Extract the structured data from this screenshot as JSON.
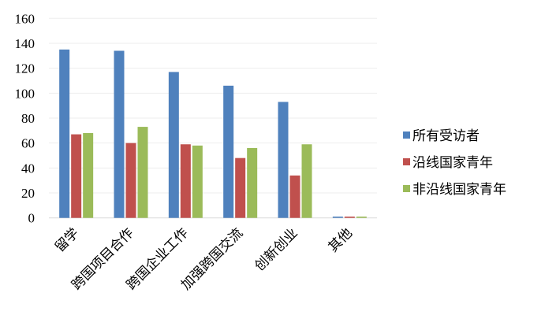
{
  "chart_data": {
    "type": "bar",
    "categories": [
      "留学",
      "跨国项目合作",
      "跨国企业工作",
      "加强跨国交流",
      "创新创业",
      "其他"
    ],
    "series": [
      {
        "name": "所有受访者",
        "color": "#4f81bd",
        "values": [
          135,
          134,
          117,
          106,
          93,
          1
        ]
      },
      {
        "name": "沿线国家青年",
        "color": "#c0504d",
        "values": [
          67,
          60,
          59,
          48,
          34,
          1
        ]
      },
      {
        "name": "非沿线国家青年",
        "color": "#9bbb59",
        "values": [
          68,
          73,
          58,
          56,
          59,
          1
        ]
      }
    ],
    "yticks": [
      "0",
      "20",
      "40",
      "60",
      "80",
      "100",
      "120",
      "140",
      "160"
    ],
    "ylim": [
      0,
      160
    ],
    "grid": true,
    "legend": "right",
    "xlabel": "",
    "ylabel": "",
    "title": ""
  }
}
